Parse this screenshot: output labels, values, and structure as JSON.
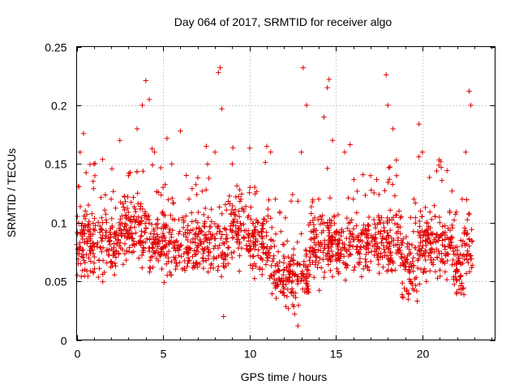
{
  "chart_data": {
    "type": "scatter",
    "title": "Day 064 of 2017, SRMTID for receiver algo",
    "xlabel": "GPS time / hours",
    "ylabel": "SRMTID / TECUs",
    "xlim": [
      0,
      24.2
    ],
    "ylim": [
      0,
      0.25
    ],
    "x_ticks": [
      0,
      5,
      10,
      15,
      20
    ],
    "x_tick_labels": [
      "0",
      "5",
      "10",
      "15",
      "20"
    ],
    "y_ticks": [
      0,
      0.05,
      0.1,
      0.15,
      0.2,
      0.25
    ],
    "y_tick_labels": [
      "0",
      "0.05",
      "0.1",
      "0.15",
      "0.2",
      "0.25"
    ],
    "grid": true,
    "marker": "+",
    "series": [
      {
        "name": "SRMTID",
        "color": "#e00000",
        "points_sample": [
          [
            0.1,
            0.065
          ],
          [
            0.2,
            0.16
          ],
          [
            0.4,
            0.176
          ],
          [
            0.5,
            0.11
          ],
          [
            0.8,
            0.09
          ],
          [
            1.0,
            0.15
          ],
          [
            1.5,
            0.1
          ],
          [
            2.0,
            0.12
          ],
          [
            2.5,
            0.17
          ],
          [
            3.0,
            0.14
          ],
          [
            3.5,
            0.18
          ],
          [
            3.8,
            0.2
          ],
          [
            4.0,
            0.221
          ],
          [
            4.2,
            0.205
          ],
          [
            4.5,
            0.16
          ],
          [
            5.0,
            0.13
          ],
          [
            5.5,
            0.15
          ],
          [
            6.0,
            0.178
          ],
          [
            6.5,
            0.12
          ],
          [
            7.0,
            0.1
          ],
          [
            7.5,
            0.165
          ],
          [
            8.0,
            0.16
          ],
          [
            8.2,
            0.228
          ],
          [
            8.3,
            0.232
          ],
          [
            8.4,
            0.197
          ],
          [
            8.5,
            0.02
          ],
          [
            9.0,
            0.15
          ],
          [
            9.5,
            0.12
          ],
          [
            10.0,
            0.08
          ],
          [
            10.5,
            0.1
          ],
          [
            11.0,
            0.165
          ],
          [
            11.5,
            0.12
          ],
          [
            12.0,
            0.06
          ],
          [
            12.5,
            0.03
          ],
          [
            12.8,
            0.012
          ],
          [
            13.0,
            0.16
          ],
          [
            13.1,
            0.232
          ],
          [
            13.3,
            0.2
          ],
          [
            13.5,
            0.1
          ],
          [
            14.0,
            0.12
          ],
          [
            14.3,
            0.19
          ],
          [
            14.5,
            0.215
          ],
          [
            14.6,
            0.222
          ],
          [
            14.8,
            0.17
          ],
          [
            15.0,
            0.09
          ],
          [
            15.5,
            0.16
          ],
          [
            16.0,
            0.12
          ],
          [
            16.5,
            0.09
          ],
          [
            17.0,
            0.14
          ],
          [
            17.5,
            0.1
          ],
          [
            17.9,
            0.226
          ],
          [
            18.0,
            0.2
          ],
          [
            18.3,
            0.18
          ],
          [
            18.5,
            0.14
          ],
          [
            19.0,
            0.06
          ],
          [
            19.3,
            0.05
          ],
          [
            19.5,
            0.12
          ],
          [
            19.8,
            0.184
          ],
          [
            20.0,
            0.16
          ],
          [
            20.3,
            0.09
          ],
          [
            20.5,
            0.07
          ],
          [
            21.0,
            0.1
          ],
          [
            21.5,
            0.08
          ],
          [
            22.0,
            0.06
          ],
          [
            22.3,
            0.12
          ],
          [
            22.5,
            0.16
          ],
          [
            22.7,
            0.212
          ],
          [
            22.8,
            0.2
          ]
        ]
      }
    ]
  }
}
